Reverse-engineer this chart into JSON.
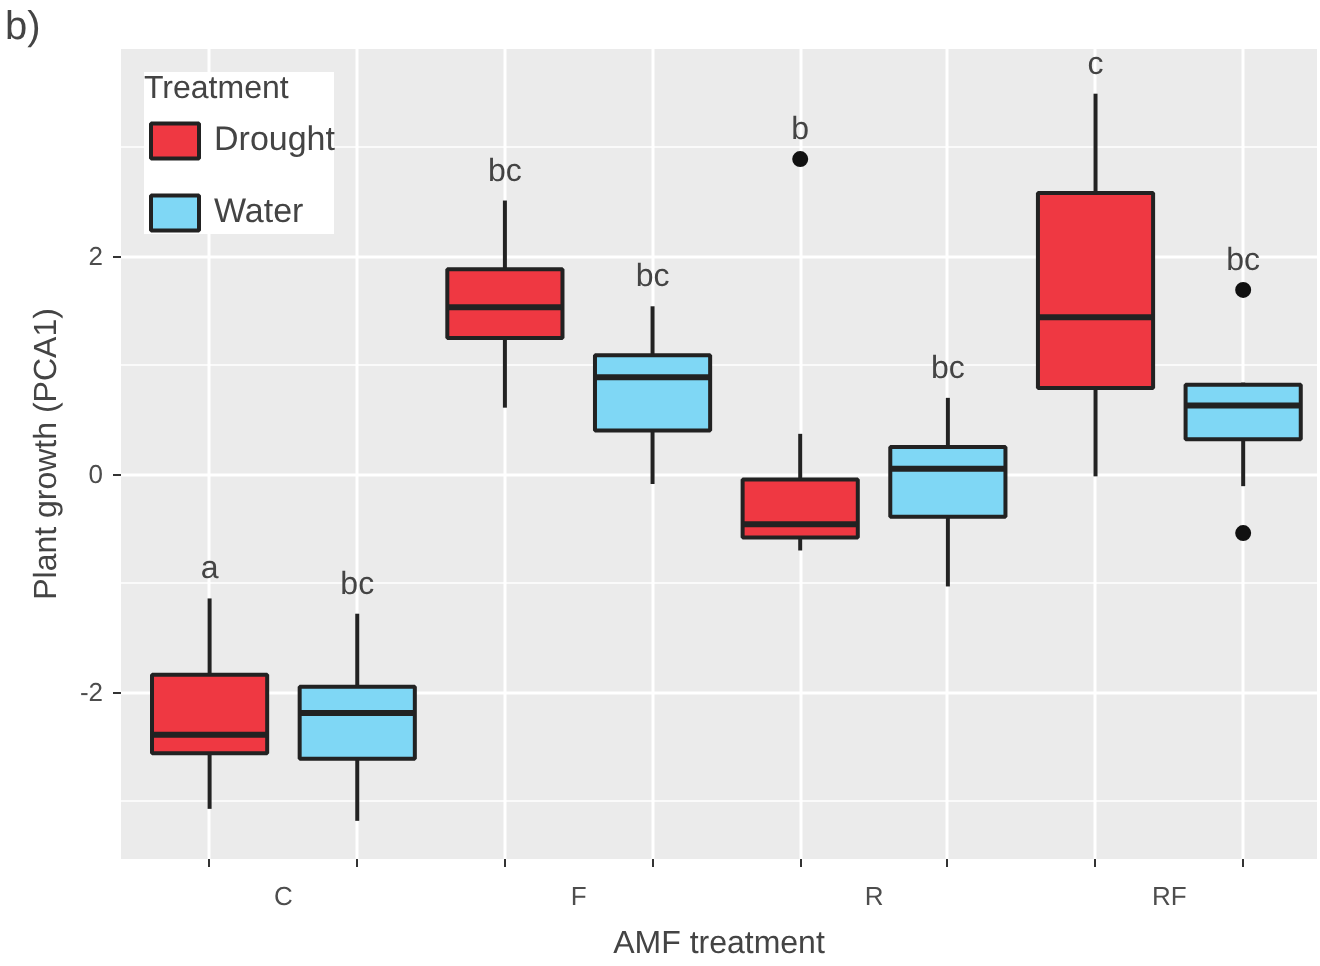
{
  "chart_data": {
    "type": "box",
    "xlabel": "AMF treatment",
    "ylabel": "Plant growth (PCA1)",
    "legend_title": "Treatment",
    "legend": "top left",
    "grid": true,
    "categories": [
      "C",
      "F",
      "R",
      "RF"
    ],
    "ylim": [
      -3.53,
      3.9
    ],
    "yticks": [
      {
        "value": -3,
        "label": null
      },
      -2,
      {
        "value": -1,
        "label": null
      },
      0,
      {
        "value": 1,
        "label": null
      },
      2,
      {
        "value": 3,
        "label": null
      }
    ],
    "series": [
      {
        "name": "Drought",
        "color": "#ef3842",
        "boxes": [
          {
            "low": -3.07,
            "q1": -2.56,
            "median": -2.39,
            "q3": -1.84,
            "high": -1.14
          },
          {
            "low": 0.61,
            "q1": 1.25,
            "median": 1.53,
            "q3": 1.88,
            "high": 2.51
          },
          {
            "low": -0.7,
            "q1": -0.58,
            "median": -0.46,
            "q3": -0.05,
            "high": 0.37,
            "outliers": [
              2.89
            ]
          },
          {
            "low": -0.02,
            "q1": 0.79,
            "median": 1.44,
            "q3": 2.58,
            "high": 3.49
          }
        ]
      },
      {
        "name": "Water",
        "color": "#7fd7f5",
        "boxes": [
          {
            "low": -3.18,
            "q1": -2.61,
            "median": -2.19,
            "q3": -1.95,
            "high": -1.28
          },
          {
            "low": -0.09,
            "q1": 0.4,
            "median": 0.89,
            "q3": 1.09,
            "high": 1.54
          },
          {
            "low": -1.03,
            "q1": -0.39,
            "median": 0.05,
            "q3": 0.25,
            "high": 0.7
          },
          {
            "low": -0.11,
            "q1": 0.32,
            "median": 0.63,
            "q3": 0.82,
            "high": 0.84,
            "outliers": [
              1.69,
              -0.54
            ]
          }
        ]
      }
    ],
    "annotations": [
      "b)",
      "a",
      "bc",
      "bc",
      "bc",
      "b",
      "bc",
      "c",
      "bc"
    ]
  }
}
